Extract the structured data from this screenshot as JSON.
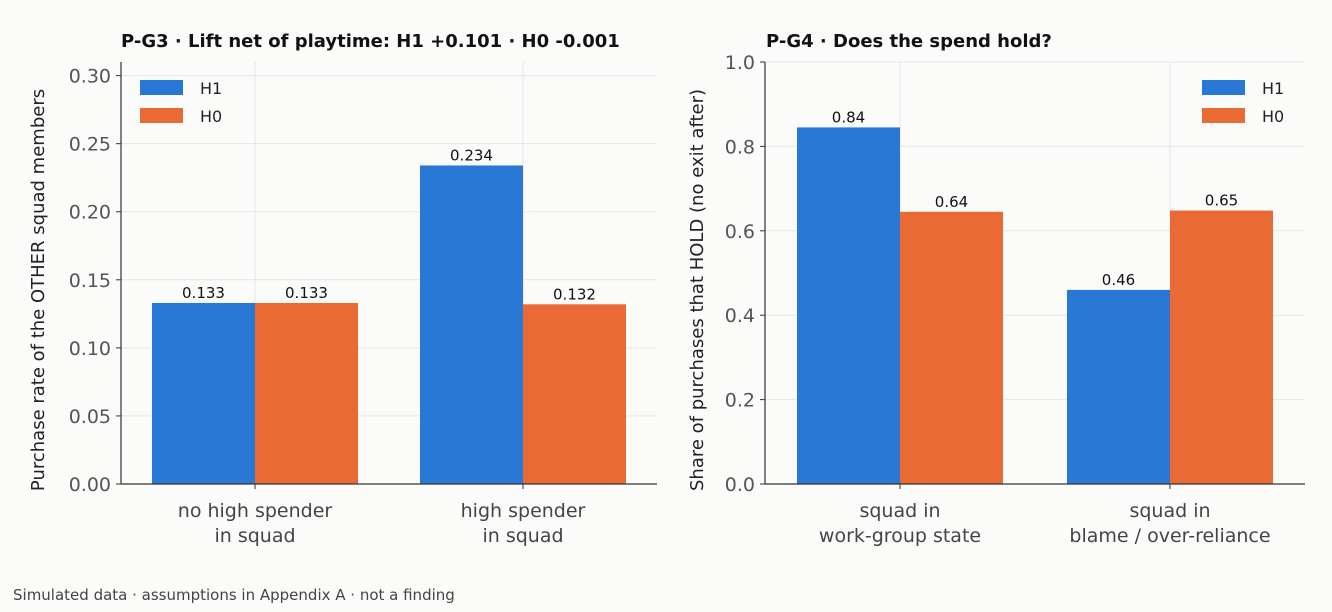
{
  "colors": {
    "H1": "#2a78d6",
    "H0": "#ea6a35",
    "grid": "#e6e6e6",
    "axis": "#333333",
    "tick_text": "#555555"
  },
  "footer": "Simulated data · assumptions in Appendix A · not a finding",
  "chart_data": [
    {
      "type": "bar",
      "title": "P-G3 · Lift net of playtime: H1 +0.101 · H0 -0.001",
      "xlabel": "",
      "ylabel": "Purchase rate of the OTHER squad members",
      "categories": [
        [
          "no high spender",
          "in squad"
        ],
        [
          "high spender",
          "in squad"
        ]
      ],
      "series": [
        {
          "name": "H1",
          "values": [
            0.133,
            0.234
          ],
          "labels": [
            "0.133",
            "0.234"
          ]
        },
        {
          "name": "H0",
          "values": [
            0.133,
            0.132
          ],
          "labels": [
            "0.133",
            "0.132"
          ]
        }
      ],
      "ylim": [
        0,
        0.31
      ],
      "yticks": [
        0,
        0.05,
        0.1,
        0.15,
        0.2,
        0.25,
        0.3
      ],
      "ytick_labels": [
        "0.00",
        "0.05",
        "0.10",
        "0.15",
        "0.20",
        "0.25",
        "0.30"
      ],
      "legend": "top-left",
      "grid": true
    },
    {
      "type": "bar",
      "title": "P-G4 · Does the spend hold?",
      "xlabel": "",
      "ylabel": "Share of purchases that HOLD (no exit after)",
      "categories": [
        [
          "squad in",
          "work-group state"
        ],
        [
          "squad in",
          "blame / over-reliance"
        ]
      ],
      "series": [
        {
          "name": "H1",
          "values": [
            0.845,
            0.46
          ],
          "labels": [
            "0.84",
            "0.46"
          ]
        },
        {
          "name": "H0",
          "values": [
            0.645,
            0.648
          ],
          "labels": [
            "0.64",
            "0.65"
          ]
        }
      ],
      "ylim": [
        0,
        1.0
      ],
      "yticks": [
        0,
        0.2,
        0.4,
        0.6,
        0.8,
        1.0
      ],
      "ytick_labels": [
        "0.0",
        "0.2",
        "0.4",
        "0.6",
        "0.8",
        "1.0"
      ],
      "legend": "top-right",
      "grid": true
    }
  ]
}
